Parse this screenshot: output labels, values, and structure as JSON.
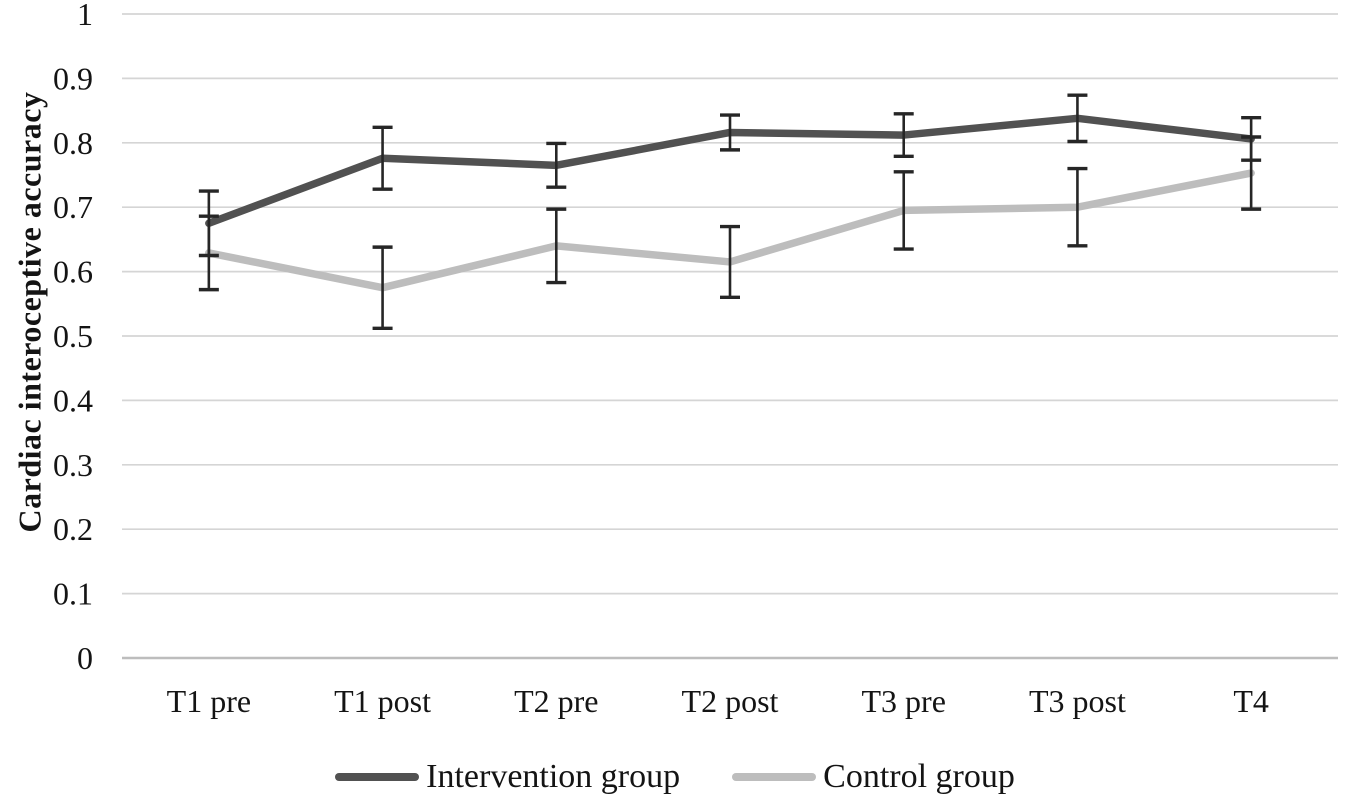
{
  "chart_data": {
    "type": "line",
    "ylabel": "Cardiac interoceptive accuracy",
    "categories": [
      "T1 pre",
      "T1 post",
      "T2 pre",
      "T2 post",
      "T3 pre",
      "T3 post",
      "T4"
    ],
    "ylim": [
      0,
      1
    ],
    "yticks": [
      "0",
      "0.1",
      "0.2",
      "0.3",
      "0.4",
      "0.5",
      "0.6",
      "0.7",
      "0.8",
      "0.9",
      "1"
    ],
    "grid": "horizontal",
    "legend_position": "bottom",
    "series": [
      {
        "name": "Intervention group",
        "color": "#515151",
        "values": [
          0.675,
          0.776,
          0.765,
          0.816,
          0.812,
          0.838,
          0.806
        ],
        "error": [
          0.05,
          0.048,
          0.034,
          0.027,
          0.033,
          0.036,
          0.033
        ]
      },
      {
        "name": "Control group",
        "color": "#bdbdbd",
        "values": [
          0.629,
          0.575,
          0.64,
          0.615,
          0.695,
          0.7,
          0.753
        ],
        "error": [
          0.057,
          0.063,
          0.057,
          0.055,
          0.06,
          0.06,
          0.056
        ]
      }
    ],
    "colors": {
      "error_bar": "#262626",
      "gridline": "#d5d5d5",
      "axis_line": "#bdbdbd",
      "text": "#141414"
    }
  }
}
